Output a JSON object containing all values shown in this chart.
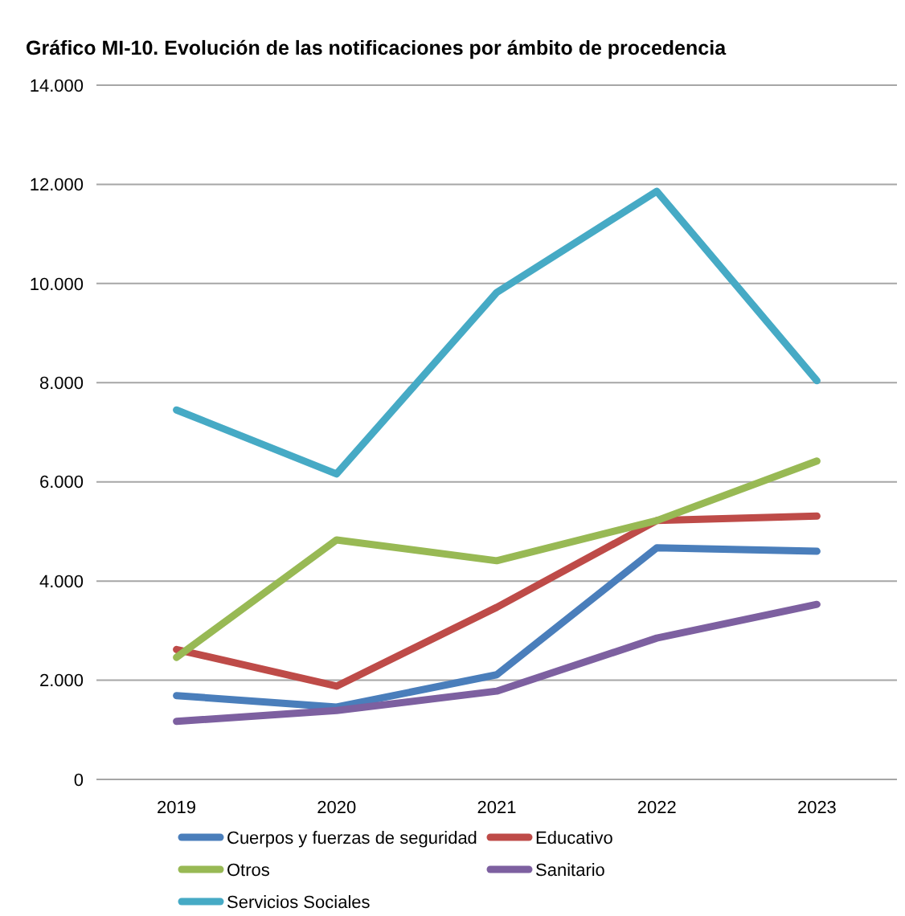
{
  "chart_data": {
    "type": "line",
    "title": "Gráfico MI-10. Evolución de las notificaciones por ámbito de procedencia",
    "categories": [
      "2019",
      "2020",
      "2021",
      "2022",
      "2023"
    ],
    "series": [
      {
        "name": "Cuerpos y fuerzas de seguridad",
        "color": "#4a7ebb",
        "values": [
          1690,
          1460,
          2110,
          4670,
          4600
        ]
      },
      {
        "name": "Educativo",
        "color": "#be4b48",
        "values": [
          2620,
          1880,
          3470,
          5220,
          5310
        ]
      },
      {
        "name": "Otros",
        "color": "#98b954",
        "values": [
          2460,
          4830,
          4410,
          5220,
          6420
        ]
      },
      {
        "name": "Sanitario",
        "color": "#7d60a0",
        "values": [
          1170,
          1390,
          1780,
          2850,
          3530
        ]
      },
      {
        "name": "Servicios Sociales",
        "color": "#46aac5",
        "values": [
          7450,
          6160,
          9820,
          11860,
          8040
        ]
      }
    ],
    "ylim": [
      0,
      14000
    ],
    "yticks": [
      {
        "value": 0,
        "label": "0"
      },
      {
        "value": 2000,
        "label": "2.000"
      },
      {
        "value": 4000,
        "label": "4.000"
      },
      {
        "value": 6000,
        "label": "6.000"
      },
      {
        "value": 8000,
        "label": "8.000"
      },
      {
        "value": 10000,
        "label": "10.000"
      },
      {
        "value": 12000,
        "label": "12.000"
      },
      {
        "value": 14000,
        "label": "14.000"
      }
    ],
    "grid": "y",
    "legend": "bottom",
    "marker": "none",
    "line_style": "solid"
  }
}
